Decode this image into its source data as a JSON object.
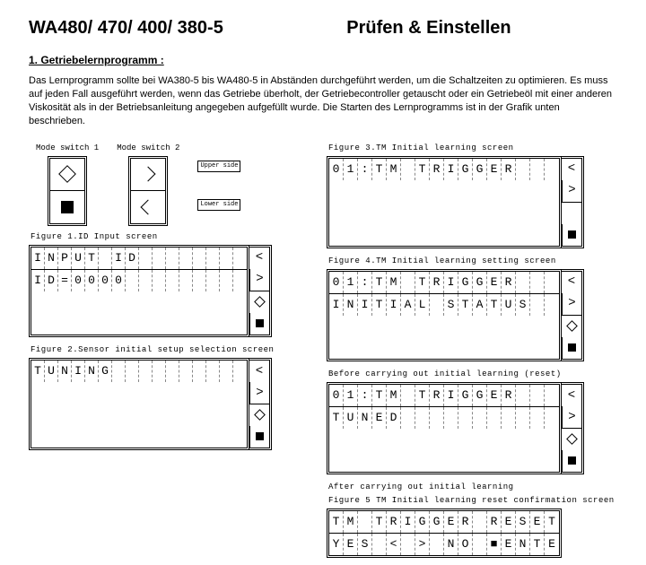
{
  "header": {
    "left": "WA480/ 470/ 400/ 380-5",
    "right": "Prüfen & Einstellen"
  },
  "section": {
    "heading": "1.  Getriebelernprogramm :",
    "text": "Das Lernprogramm sollte bei WA380-5 bis WA480-5 in Abständen durchgeführt werden, um die Schaltzeiten zu optimieren.  Es muss auf jeden Fall ausgeführt werden, wenn das Getriebe überholt, der Getriebecontroller getauscht oder ein Getriebeöl mit einer anderen Viskosität als in der Betriebsanleitung angegeben aufgefüllt wurde. Die Starten des Lernprogramms ist in der Grafik unten beschrieben."
  },
  "modes": {
    "m1": "Mode switch 1",
    "m2": "Mode switch 2",
    "upper": "Upper side",
    "lower": "Lower side"
  },
  "figs": {
    "f1": "Figure 1.ID Input screen",
    "f2": "Figure 2.Sensor initial setup selection screen",
    "f3": "Figure 3.TM Initial learning screen",
    "f4": "Figure 4.TM Initial learning setting screen",
    "before": "Before carrying out initial learning (reset)",
    "after": "After carrying out initial learning",
    "f5": "Figure 5 TM Initial learning reset confirmation screen"
  },
  "lcd": {
    "f1r1": "INPUT ID        ",
    "f1r2": "ID=0000         ",
    "f2r1": "TUNING          ",
    "f3r1": "01:TM TRIGGER   ",
    "f4r1": "01:TM TRIGGER   ",
    "f4r2": "INITIAL STATUS  ",
    "fb1": "01:TM TRIGGER   ",
    "fb2": "TUNED           ",
    "f5r1": "TM TRIGGER RESET",
    "f5r2": "YES < > NO ■ENTER"
  },
  "colors": {
    "fg": "#000000",
    "bg": "#ffffff",
    "dash": "#888888"
  }
}
